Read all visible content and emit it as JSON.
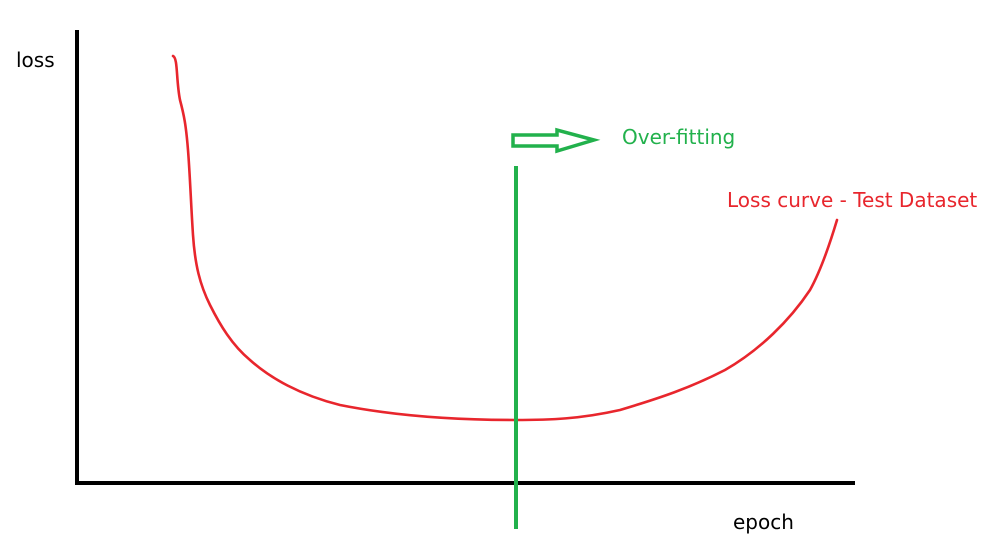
{
  "colors": {
    "axis": "#000000",
    "curve": "#e8262d",
    "marker": "#22b14c"
  },
  "axes": {
    "y_label": "loss",
    "x_label": "epoch"
  },
  "curve": {
    "label": "Loss curve - Test Dataset"
  },
  "marker": {
    "label": "Over-fitting",
    "arrow_icon": "right-arrow-icon"
  }
}
